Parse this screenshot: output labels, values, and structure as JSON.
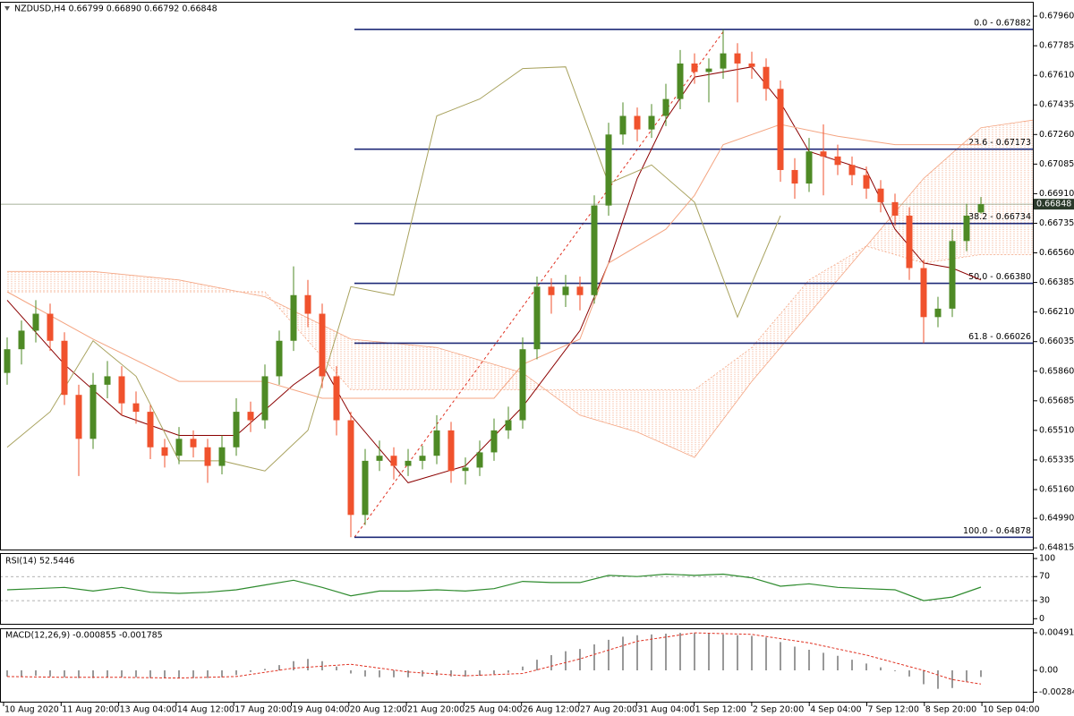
{
  "chart_data": [
    {
      "type": "candlestick",
      "title": "NZDUSD,H4  0.66799 0.66890 0.66792 0.66848",
      "up_color": "#4e8a25",
      "down_color": "#f0522d",
      "ylim": [
        0.648,
        0.68045
      ],
      "yticks": [
        {
          "value": 0.6796,
          "label": "0.67960"
        },
        0.67785,
        {
          "value": 0.6761,
          "label": "0.67610"
        },
        0.67435,
        {
          "value": 0.6726,
          "label": "0.67260"
        },
        0.67085,
        {
          "value": 0.6691,
          "label": "0.66910"
        },
        0.66735,
        {
          "value": 0.6656,
          "label": "0.66560"
        },
        0.66385,
        {
          "value": 0.6621,
          "label": "0.66210"
        },
        0.66035,
        {
          "value": 0.6586,
          "label": "0.65860"
        },
        0.65685,
        {
          "value": 0.6551,
          "label": "0.65510"
        },
        0.65335,
        {
          "value": 0.6516,
          "label": "0.65160"
        },
        {
          "value": 0.6499,
          "label": "0.64990"
        },
        0.64815
      ],
      "x_labels": [
        "10 Aug 2020",
        "11 Aug 20:00",
        "13 Aug 04:00",
        "14 Aug 12:00",
        "17 Aug 20:00",
        "19 Aug 04:00",
        "20 Aug 12:00",
        "21 Aug 20:00",
        "25 Aug 04:00",
        "26 Aug 12:00",
        "27 Aug 20:00",
        "31 Aug 04:00",
        "1 Sep 12:00",
        "2 Sep 20:00",
        "4 Sep 04:00",
        "7 Sep 12:00",
        "8 Sep 20:00",
        "10 Sep 04:00"
      ],
      "ohlc": [
        [
          0.6585,
          0.6606,
          0.6578,
          0.6599
        ],
        [
          0.6599,
          0.6616,
          0.659,
          0.661
        ],
        [
          0.661,
          0.6628,
          0.6603,
          0.662
        ],
        [
          0.662,
          0.6626,
          0.6598,
          0.6604
        ],
        [
          0.6604,
          0.6609,
          0.6566,
          0.6572
        ],
        [
          0.6572,
          0.6578,
          0.6524,
          0.6546
        ],
        [
          0.6546,
          0.6585,
          0.654,
          0.6578
        ],
        [
          0.6578,
          0.6592,
          0.657,
          0.6583
        ],
        [
          0.6583,
          0.6589,
          0.656,
          0.6567
        ],
        [
          0.6567,
          0.6574,
          0.6555,
          0.6562
        ],
        [
          0.6562,
          0.6566,
          0.6534,
          0.6541
        ],
        [
          0.6541,
          0.6546,
          0.6529,
          0.6536
        ],
        [
          0.6536,
          0.6553,
          0.6531,
          0.6546
        ],
        [
          0.6546,
          0.6551,
          0.6535,
          0.6541
        ],
        [
          0.6541,
          0.6546,
          0.652,
          0.653
        ],
        [
          0.653,
          0.6548,
          0.6525,
          0.6541
        ],
        [
          0.6541,
          0.657,
          0.6536,
          0.6562
        ],
        [
          0.6562,
          0.6568,
          0.655,
          0.6557
        ],
        [
          0.6557,
          0.659,
          0.6552,
          0.6583
        ],
        [
          0.6583,
          0.661,
          0.6578,
          0.6604
        ],
        [
          0.6604,
          0.6648,
          0.6598,
          0.6631
        ],
        [
          0.6631,
          0.664,
          0.6612,
          0.662
        ],
        [
          0.662,
          0.6626,
          0.6576,
          0.6583
        ],
        [
          0.6583,
          0.6589,
          0.6548,
          0.6557
        ],
        [
          0.6557,
          0.6562,
          0.64878,
          0.6501
        ],
        [
          0.6501,
          0.654,
          0.6495,
          0.6533
        ],
        [
          0.6533,
          0.6545,
          0.6527,
          0.6536
        ],
        [
          0.6536,
          0.6541,
          0.6522,
          0.653
        ],
        [
          0.653,
          0.654,
          0.6524,
          0.6533
        ],
        [
          0.6533,
          0.6542,
          0.6528,
          0.6536
        ],
        [
          0.6536,
          0.656,
          0.6531,
          0.6551
        ],
        [
          0.6551,
          0.6556,
          0.652,
          0.6527
        ],
        [
          0.6527,
          0.6535,
          0.6519,
          0.6529
        ],
        [
          0.6529,
          0.6545,
          0.6524,
          0.6538
        ],
        [
          0.6538,
          0.6558,
          0.6533,
          0.6551
        ],
        [
          0.6551,
          0.6565,
          0.6546,
          0.6557
        ],
        [
          0.6557,
          0.6606,
          0.6552,
          0.6599
        ],
        [
          0.6599,
          0.6642,
          0.6593,
          0.6636
        ],
        [
          0.6636,
          0.6641,
          0.662,
          0.6631
        ],
        [
          0.6631,
          0.6643,
          0.6624,
          0.6636
        ],
        [
          0.6636,
          0.6642,
          0.6622,
          0.6631
        ],
        [
          0.6631,
          0.669,
          0.6626,
          0.6684
        ],
        [
          0.6684,
          0.6733,
          0.6678,
          0.6726
        ],
        [
          0.6726,
          0.6745,
          0.672,
          0.6737
        ],
        [
          0.6737,
          0.6742,
          0.6722,
          0.6729
        ],
        [
          0.6729,
          0.6744,
          0.6724,
          0.6737
        ],
        [
          0.6737,
          0.6756,
          0.6731,
          0.6747
        ],
        [
          0.6747,
          0.6776,
          0.6741,
          0.6768
        ],
        [
          0.6768,
          0.6774,
          0.6756,
          0.6763
        ],
        [
          0.6763,
          0.6771,
          0.6745,
          0.6765
        ],
        [
          0.6765,
          0.67882,
          0.6759,
          0.6774
        ],
        [
          0.6774,
          0.678,
          0.6745,
          0.6768
        ],
        [
          0.6768,
          0.6775,
          0.6759,
          0.6766
        ],
        [
          0.6766,
          0.6771,
          0.6746,
          0.6753
        ],
        [
          0.6753,
          0.6758,
          0.6698,
          0.6705
        ],
        [
          0.6705,
          0.6712,
          0.6688,
          0.6697
        ],
        [
          0.6697,
          0.6724,
          0.6692,
          0.6716
        ],
        [
          0.6716,
          0.6732,
          0.669,
          0.6713
        ],
        [
          0.6713,
          0.672,
          0.6702,
          0.6708
        ],
        [
          0.6708,
          0.6713,
          0.6696,
          0.6702
        ],
        [
          0.6702,
          0.6707,
          0.6688,
          0.6694
        ],
        [
          0.6694,
          0.6699,
          0.668,
          0.6686
        ],
        [
          0.6686,
          0.6691,
          0.6672,
          0.6678
        ],
        [
          0.6678,
          0.6683,
          0.664,
          0.6647
        ],
        [
          0.6647,
          0.6652,
          0.66026,
          0.6618
        ],
        [
          0.6618,
          0.663,
          0.6612,
          0.6623
        ],
        [
          0.6623,
          0.667,
          0.6618,
          0.6663
        ],
        [
          0.6663,
          0.6685,
          0.6657,
          0.6678
        ],
        [
          0.66799,
          0.6689,
          0.66792,
          0.66848
        ]
      ],
      "cloud": {
        "color": "#f4a582",
        "upper": {
          "x": [
            0,
            6,
            12,
            18,
            24,
            30,
            36,
            40,
            44,
            48,
            52,
            56,
            60,
            64,
            68,
            72
          ],
          "values": [
            0.6645,
            0.6645,
            0.664,
            0.663,
            0.6605,
            0.66,
            0.6585,
            0.656,
            0.655,
            0.6535,
            0.658,
            0.662,
            0.666,
            0.67,
            0.673,
            0.6735
          ]
        },
        "lower": {
          "x": [
            0,
            6,
            12,
            18,
            24,
            30,
            36,
            40,
            44,
            48,
            52,
            56,
            60,
            64,
            68,
            72
          ],
          "values": [
            0.6633,
            0.6633,
            0.6633,
            0.6633,
            0.6575,
            0.6575,
            0.6575,
            0.6575,
            0.6575,
            0.6575,
            0.66,
            0.664,
            0.666,
            0.665,
            0.6655,
            0.6655
          ]
        }
      },
      "lines": [
        {
          "color": "#8b0000",
          "x": [
            0,
            4,
            8,
            12,
            16,
            20,
            22,
            24,
            28,
            32,
            36,
            40,
            42,
            44,
            46,
            48,
            52,
            54,
            56,
            60,
            62,
            64,
            66,
            68
          ],
          "values": [
            0.6628,
            0.659,
            0.656,
            0.6548,
            0.6548,
            0.6578,
            0.659,
            0.656,
            0.652,
            0.653,
            0.6565,
            0.661,
            0.665,
            0.67,
            0.6735,
            0.676,
            0.6766,
            0.6745,
            0.6716,
            0.6705,
            0.667,
            0.665,
            0.6647,
            0.664
          ]
        },
        {
          "color": "#f4a582",
          "x": [
            0,
            6,
            12,
            18,
            22,
            30,
            34,
            36,
            40,
            42,
            46,
            48,
            50,
            54,
            58,
            62,
            66,
            68
          ],
          "values": [
            0.6633,
            0.6605,
            0.658,
            0.658,
            0.657,
            0.657,
            0.657,
            0.659,
            0.6605,
            0.665,
            0.667,
            0.669,
            0.672,
            0.6732,
            0.6725,
            0.672,
            0.672,
            0.672
          ]
        },
        {
          "color": "#a8a25e",
          "x": [
            0,
            3,
            6,
            9,
            12,
            15,
            18,
            21,
            24,
            27,
            30,
            33,
            36,
            39,
            42,
            45,
            48,
            51,
            54
          ],
          "values": [
            0.6541,
            0.6562,
            0.6604,
            0.6583,
            0.6533,
            0.6533,
            0.6527,
            0.6551,
            0.6636,
            0.6631,
            0.6737,
            0.6747,
            0.6765,
            0.6766,
            0.6697,
            0.6708,
            0.6686,
            0.6618,
            0.6678
          ]
        }
      ],
      "fib": {
        "color": "#1f2a78",
        "levels": [
          {
            "value": 0.67882,
            "label": "0.0 - 0.67882"
          },
          {
            "value": 0.67173,
            "label": "23.6 - 0.67173"
          },
          {
            "value": 0.66734,
            "label": "38.2 - 0.66734"
          },
          {
            "value": 0.6638,
            "label": "50.0 - 0.66380"
          },
          {
            "value": 0.66026,
            "label": "61.8 - 0.66026"
          },
          {
            "value": 0.64878,
            "label": "100.0 - 0.64878"
          }
        ]
      },
      "current_price": 0.66848
    },
    {
      "type": "line",
      "title": "RSI(14) 52.5446",
      "color": "#2e8b2e",
      "ylim": [
        -10,
        109
      ],
      "yticks": [
        100,
        70,
        30,
        0
      ],
      "levels": [
        70,
        30
      ],
      "x": [
        0,
        2,
        4,
        6,
        8,
        10,
        12,
        14,
        16,
        18,
        20,
        22,
        24,
        26,
        28,
        30,
        32,
        34,
        36,
        38,
        40,
        42,
        44,
        46,
        48,
        50,
        52,
        54,
        56,
        58,
        60,
        62,
        64,
        66,
        68
      ],
      "values": [
        48,
        50,
        52,
        46,
        52,
        44,
        42,
        44,
        48,
        56,
        64,
        52,
        38,
        46,
        46,
        48,
        46,
        50,
        62,
        60,
        60,
        72,
        70,
        74,
        72,
        74,
        68,
        54,
        58,
        52,
        50,
        48,
        30,
        36,
        52.5446
      ]
    },
    {
      "type": "macd",
      "title": "MACD(12,26,9) -0.000855 -0.001785",
      "hist_color": "#333333",
      "signal_color": "#e03020",
      "ylim": [
        -0.0042,
        0.0055
      ],
      "yticks": [
        0.004913,
        {
          "value": 0,
          "label": "0.00"
        },
        -0.002844
      ],
      "values": [
        -0.0008,
        -0.0008,
        -0.0007,
        -0.0008,
        -0.0009,
        -0.001,
        -0.001,
        -0.0009,
        -0.0009,
        -0.0009,
        -0.001,
        -0.001,
        -0.001,
        -0.001,
        -0.001,
        -0.0009,
        -0.0006,
        -0.0002,
        0.0002,
        0.0007,
        0.0012,
        0.0015,
        0.0012,
        0.0005,
        -0.0004,
        -0.0008,
        -0.0009,
        -0.0009,
        -0.0009,
        -0.0008,
        -0.0007,
        -0.0008,
        -0.0008,
        -0.0007,
        -0.0005,
        -0.0003,
        0.0005,
        0.0014,
        0.002,
        0.0025,
        0.0028,
        0.0034,
        0.004,
        0.0044,
        0.0046,
        0.0047,
        0.0048,
        0.0049,
        0.0049,
        0.0048,
        0.0047,
        0.0046,
        0.0045,
        0.0043,
        0.0037,
        0.0031,
        0.0027,
        0.0023,
        0.0019,
        0.0014,
        0.0009,
        0.0004,
        -0.0001,
        -0.0008,
        -0.0018,
        -0.0024,
        -0.0023,
        -0.0015,
        -0.000855
      ],
      "signal": {
        "x": [
          0,
          4,
          8,
          12,
          16,
          20,
          24,
          28,
          32,
          36,
          40,
          44,
          48,
          52,
          56,
          60,
          64,
          66,
          68
        ],
        "values": [
          -0.0008,
          -0.0009,
          -0.0009,
          -0.001,
          -0.0008,
          0.0003,
          0.0008,
          -0.0002,
          -0.0007,
          -0.0004,
          0.0015,
          0.0038,
          0.0049,
          0.0047,
          0.0036,
          0.002,
          0,
          -0.0012,
          -0.001785
        ]
      }
    }
  ]
}
